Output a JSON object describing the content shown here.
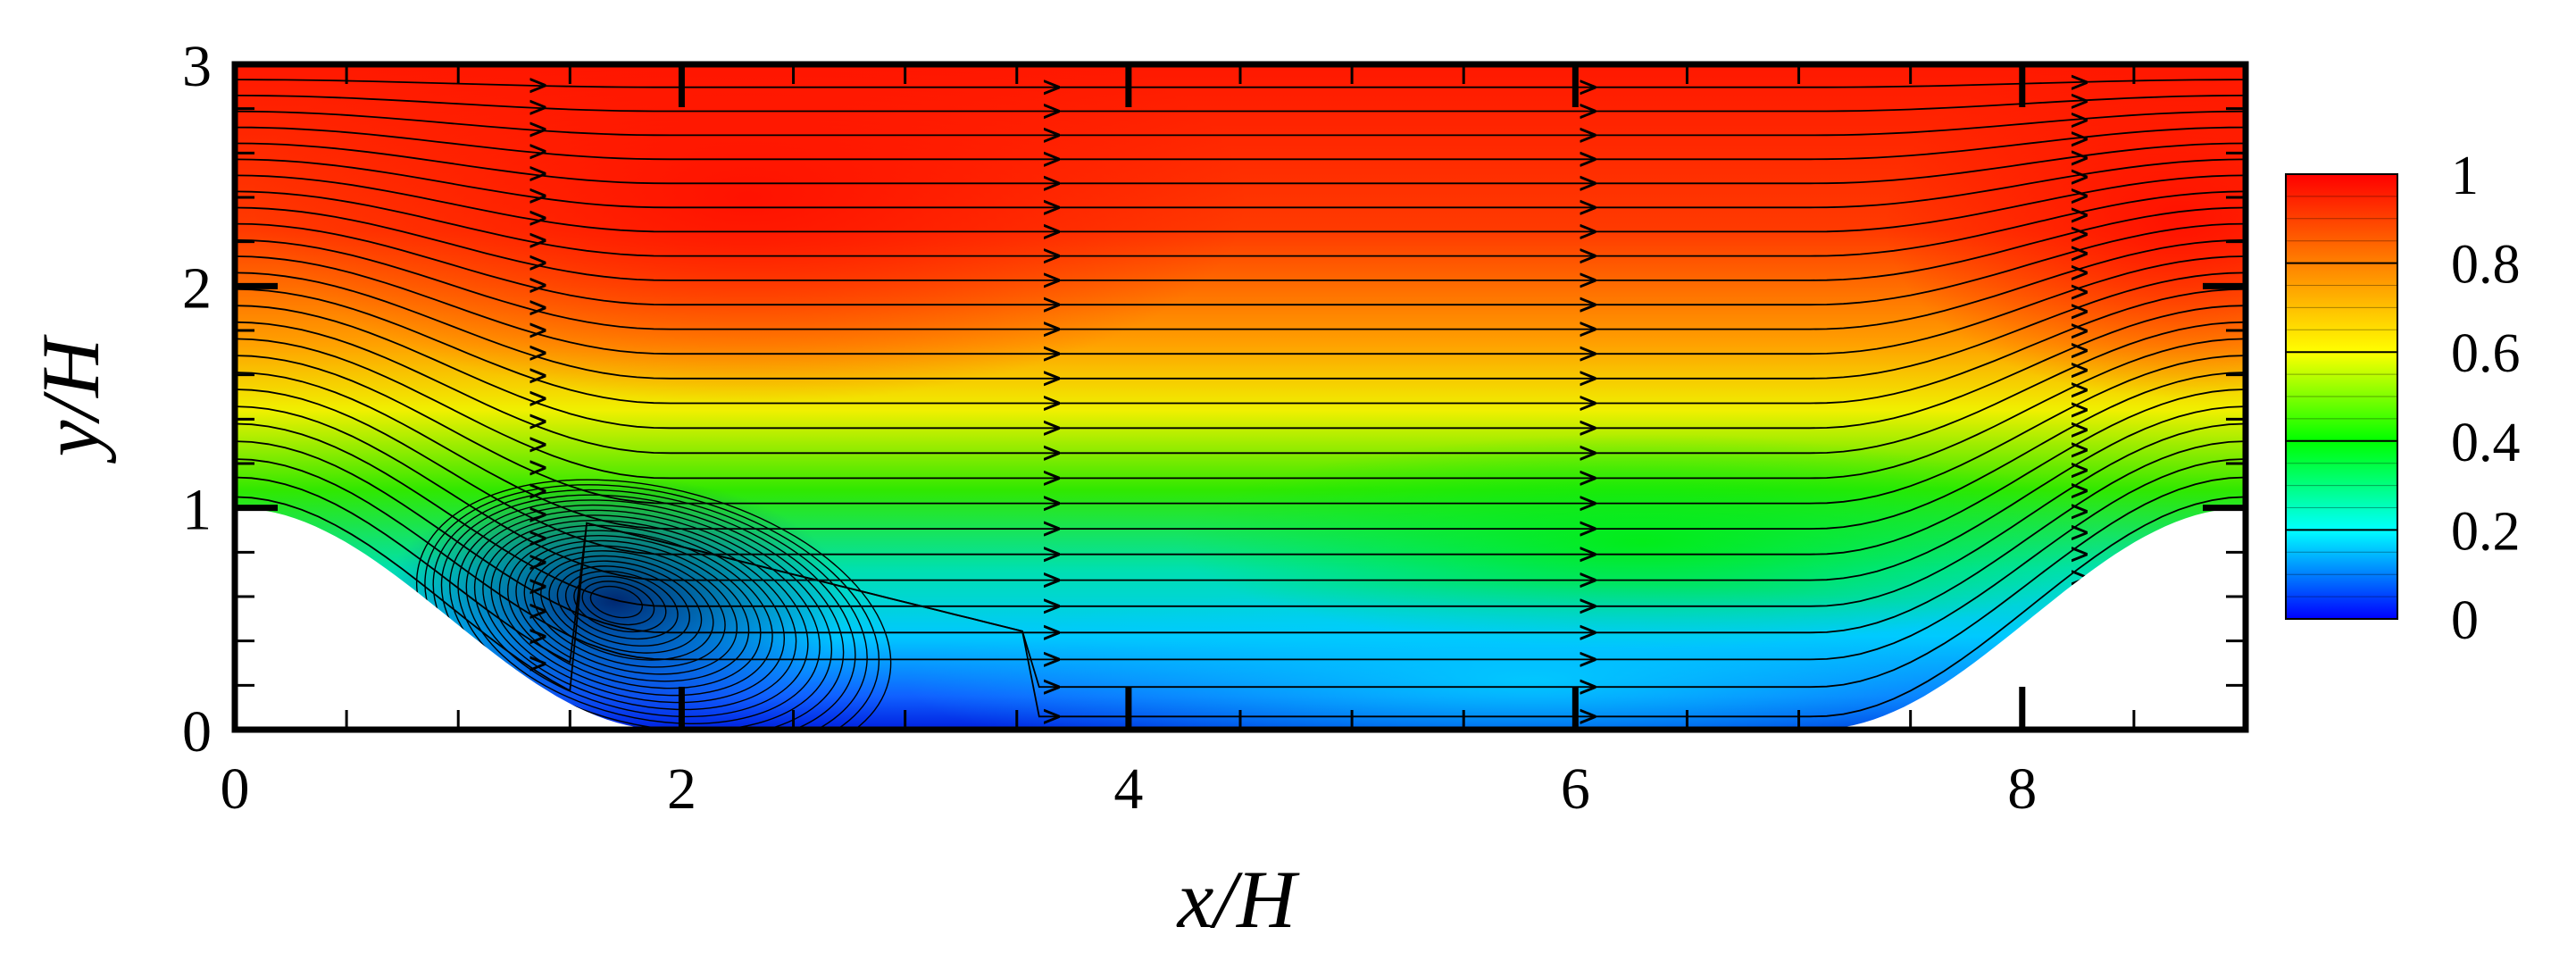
{
  "chart_data": {
    "type": "contour",
    "xlabel": "x/H",
    "ylabel": "y/H",
    "xlim": [
      0,
      9
    ],
    "ylim": [
      0,
      3
    ],
    "x_ticks": [
      "0",
      "2",
      "4",
      "6",
      "8"
    ],
    "y_ticks": [
      "0",
      "1",
      "2",
      "3"
    ],
    "colorbar": {
      "min": 0,
      "max": 1,
      "tick_labels": [
        "0",
        "0.2",
        "0.4",
        "0.6",
        "0.8",
        "1"
      ],
      "colormap": [
        "#0000ff",
        "#00ffff",
        "#00ff00",
        "#ffff00",
        "#ff8000",
        "#ff0000"
      ]
    },
    "hill_profile": {
      "x": [
        0,
        0.5,
        1.0,
        1.5,
        1.93,
        7.07,
        7.5,
        8.0,
        8.5,
        9.0
      ],
      "y": [
        1.0,
        0.96,
        0.75,
        0.38,
        0.0,
        0.0,
        0.38,
        0.75,
        0.96,
        1.0
      ]
    },
    "recirculation_center": {
      "x": 1.7,
      "y": 0.58
    },
    "streamlines": "shown",
    "grid": false
  }
}
